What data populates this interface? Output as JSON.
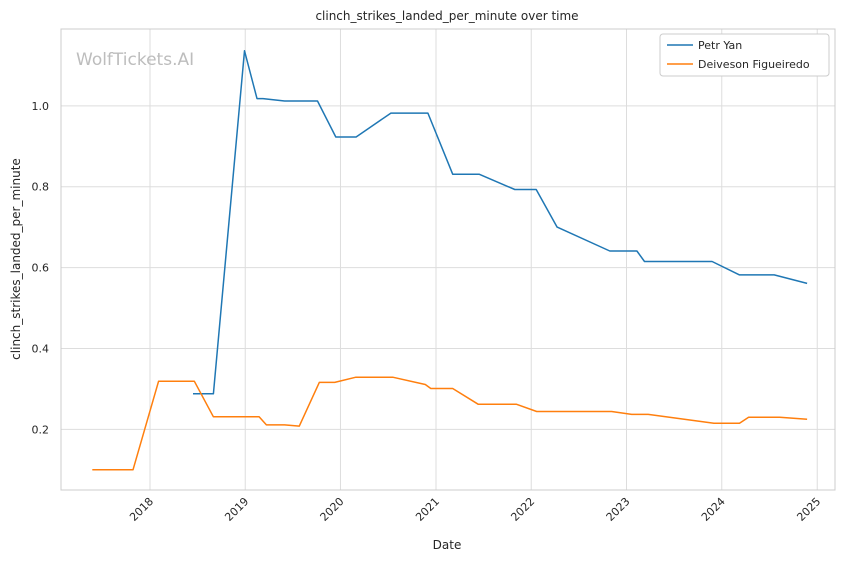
{
  "watermark": "WolfTickets.AI",
  "chart_data": {
    "type": "line",
    "title": "clinch_strikes_landed_per_minute over time",
    "xlabel": "Date",
    "ylabel": "clinch_strikes_landed_per_minute",
    "xlim": [
      "2017-01-25",
      "2025-03-10"
    ],
    "ylim": [
      0.05,
      1.19
    ],
    "x_ticks": [
      "2018",
      "2019",
      "2020",
      "2021",
      "2022",
      "2023",
      "2024",
      "2025"
    ],
    "y_ticks": [
      "0.2",
      "0.4",
      "0.6",
      "0.8",
      "1.0"
    ],
    "grid": true,
    "legend_position": "top-right",
    "series": [
      {
        "name": "Petr Yan",
        "color": "#1f77b4",
        "points": [
          [
            "2018-06-15",
            0.288
          ],
          [
            "2018-09-01",
            0.288
          ],
          [
            "2018-12-29",
            1.136
          ],
          [
            "2019-02-15",
            1.018
          ],
          [
            "2019-03-10",
            1.018
          ],
          [
            "2019-06-01",
            1.012
          ],
          [
            "2019-10-05",
            1.012
          ],
          [
            "2019-12-14",
            0.923
          ],
          [
            "2020-03-01",
            0.923
          ],
          [
            "2020-07-12",
            0.982
          ],
          [
            "2020-12-01",
            0.982
          ],
          [
            "2021-03-06",
            0.831
          ],
          [
            "2021-06-15",
            0.831
          ],
          [
            "2021-10-30",
            0.793
          ],
          [
            "2022-01-20",
            0.793
          ],
          [
            "2022-04-10",
            0.7
          ],
          [
            "2022-10-29",
            0.641
          ],
          [
            "2023-02-10",
            0.641
          ],
          [
            "2023-03-11",
            0.615
          ],
          [
            "2023-11-25",
            0.615
          ],
          [
            "2024-03-09",
            0.582
          ],
          [
            "2024-07-20",
            0.582
          ],
          [
            "2024-11-23",
            0.561
          ]
        ]
      },
      {
        "name": "Deiveson Figueiredo",
        "color": "#ff7f0e",
        "points": [
          [
            "2017-05-25",
            0.1
          ],
          [
            "2017-10-28",
            0.1
          ],
          [
            "2018-02-03",
            0.319
          ],
          [
            "2018-06-20",
            0.319
          ],
          [
            "2018-09-01",
            0.231
          ],
          [
            "2019-02-23",
            0.231
          ],
          [
            "2019-03-23",
            0.211
          ],
          [
            "2019-06-01",
            0.211
          ],
          [
            "2019-07-27",
            0.208
          ],
          [
            "2019-10-12",
            0.316
          ],
          [
            "2019-12-10",
            0.316
          ],
          [
            "2020-02-29",
            0.329
          ],
          [
            "2020-07-19",
            0.329
          ],
          [
            "2020-11-21",
            0.311
          ],
          [
            "2020-12-12",
            0.301
          ],
          [
            "2021-03-06",
            0.301
          ],
          [
            "2021-06-12",
            0.262
          ],
          [
            "2021-11-06",
            0.262
          ],
          [
            "2022-01-22",
            0.244
          ],
          [
            "2022-11-05",
            0.244
          ],
          [
            "2023-01-21",
            0.237
          ],
          [
            "2023-03-25",
            0.237
          ],
          [
            "2023-12-02",
            0.215
          ],
          [
            "2024-03-09",
            0.215
          ],
          [
            "2024-04-13",
            0.23
          ],
          [
            "2024-08-10",
            0.23
          ],
          [
            "2024-11-23",
            0.225
          ]
        ]
      }
    ]
  }
}
